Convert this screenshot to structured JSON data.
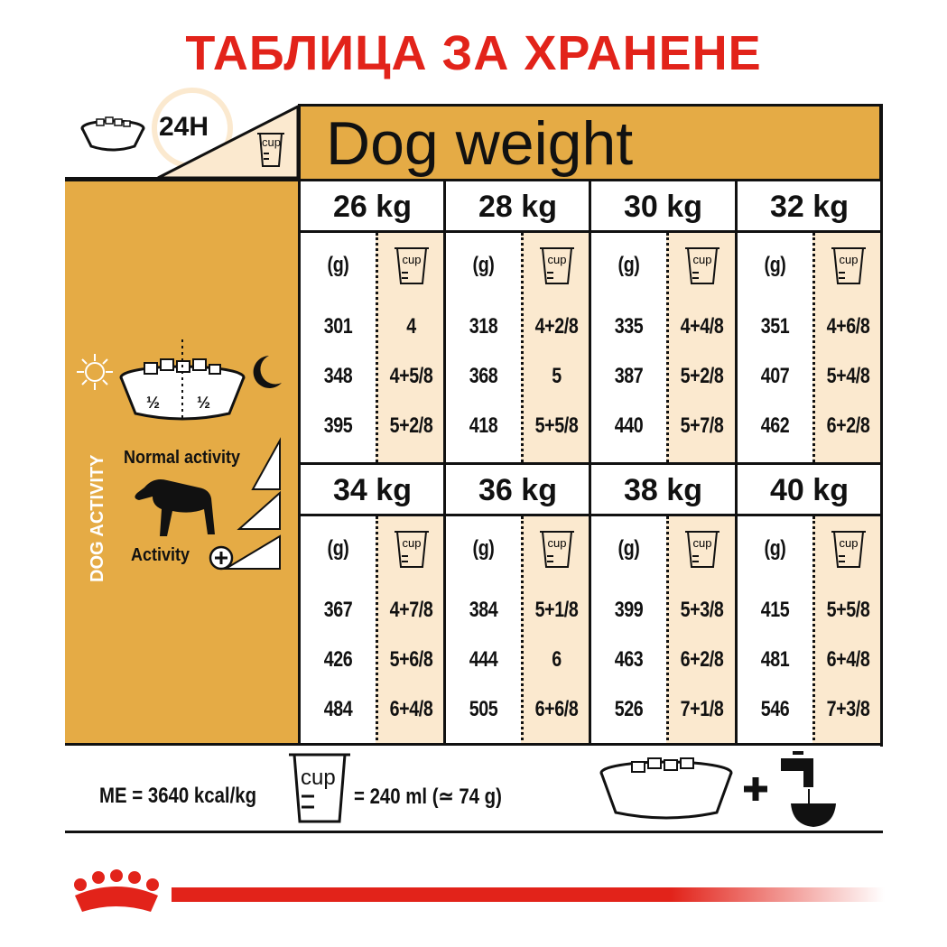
{
  "title": "ТАБЛИЦА ЗА ХРАНЕНЕ",
  "header": {
    "period": "24H",
    "cup_label": "cup",
    "dog_weight": "Dog weight"
  },
  "column_headers": {
    "grams": "(g)",
    "cups": "cup"
  },
  "blocks": [
    {
      "weight": "26 kg",
      "rows": [
        [
          "301",
          "4"
        ],
        [
          "348",
          "4+5/8"
        ],
        [
          "395",
          "5+2/8"
        ]
      ]
    },
    {
      "weight": "28 kg",
      "rows": [
        [
          "318",
          "4+2/8"
        ],
        [
          "368",
          "5"
        ],
        [
          "418",
          "5+5/8"
        ]
      ]
    },
    {
      "weight": "30 kg",
      "rows": [
        [
          "335",
          "4+4/8"
        ],
        [
          "387",
          "5+2/8"
        ],
        [
          "440",
          "5+7/8"
        ]
      ]
    },
    {
      "weight": "32 kg",
      "rows": [
        [
          "351",
          "4+6/8"
        ],
        [
          "407",
          "5+4/8"
        ],
        [
          "462",
          "6+2/8"
        ]
      ]
    },
    {
      "weight": "34 kg",
      "rows": [
        [
          "367",
          "4+7/8"
        ],
        [
          "426",
          "5+6/8"
        ],
        [
          "484",
          "6+4/8"
        ]
      ]
    },
    {
      "weight": "36 kg",
      "rows": [
        [
          "384",
          "5+1/8"
        ],
        [
          "444",
          "6"
        ],
        [
          "505",
          "6+6/8"
        ]
      ]
    },
    {
      "weight": "38 kg",
      "rows": [
        [
          "399",
          "5+3/8"
        ],
        [
          "463",
          "6+2/8"
        ],
        [
          "526",
          "7+1/8"
        ]
      ]
    },
    {
      "weight": "40 kg",
      "rows": [
        [
          "415",
          "5+5/8"
        ],
        [
          "481",
          "6+4/8"
        ],
        [
          "546",
          "7+3/8"
        ]
      ]
    }
  ],
  "left_panel": {
    "half1": "½",
    "half2": "½",
    "normal_activity": "Normal activity",
    "activity": "Activity",
    "dog_activity": "DOG ACTIVITY"
  },
  "footer": {
    "energy": "ME = 3640 kcal/kg",
    "cup_label": "cup",
    "cup_measure": "= 240 ml (≃ 74 g)"
  },
  "colors": {
    "title_red": "#e2231a",
    "gold": "#e5ab45",
    "cream": "#fbe9cf"
  }
}
